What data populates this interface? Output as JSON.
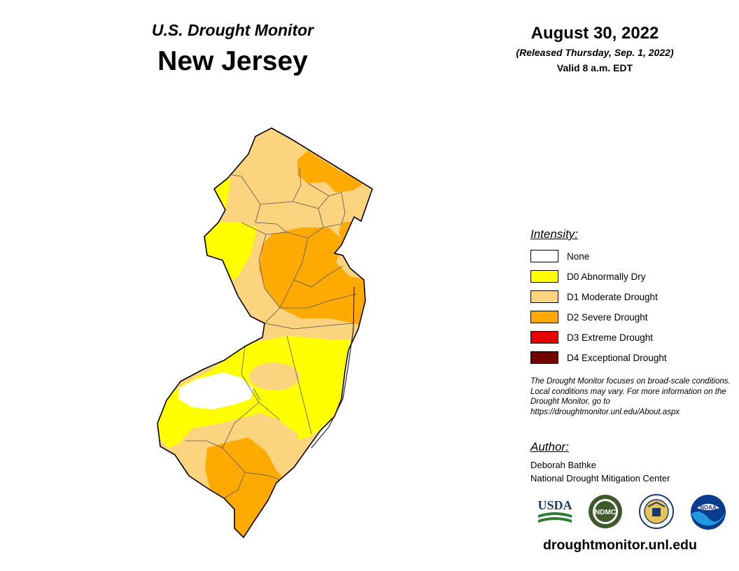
{
  "header": {
    "subtitle": "U.S. Drought Monitor",
    "title": "New Jersey",
    "date": "August 30, 2022",
    "released": "(Released Thursday, Sep. 1, 2022)",
    "valid": "Valid 8 a.m. EDT"
  },
  "legend": {
    "title": "Intensity:",
    "items": [
      {
        "label": "None",
        "color": "#ffffff"
      },
      {
        "label": "D0 Abnormally Dry",
        "color": "#ffff00"
      },
      {
        "label": "D1 Moderate Drought",
        "color": "#fcd37f"
      },
      {
        "label": "D2 Severe Drought",
        "color": "#ffaa00"
      },
      {
        "label": "D3 Extreme Drought",
        "color": "#e60000"
      },
      {
        "label": "D4 Exceptional Drought",
        "color": "#730000"
      }
    ]
  },
  "note": "The Drought Monitor focuses on broad-scale conditions. Local conditions may vary. For more information on the Drought Monitor, go to https://droughtmonitor.unl.edu/About.aspx",
  "author": {
    "title": "Author:",
    "name": "Deborah Bathke",
    "organization": "National Drought Mitigation Center"
  },
  "logos": {
    "usda": "USDA",
    "ndmc": "NDMC",
    "doc": "commerce-seal-icon",
    "noaa": "NOAA"
  },
  "footer_url": "droughtmonitor.unl.edu"
}
